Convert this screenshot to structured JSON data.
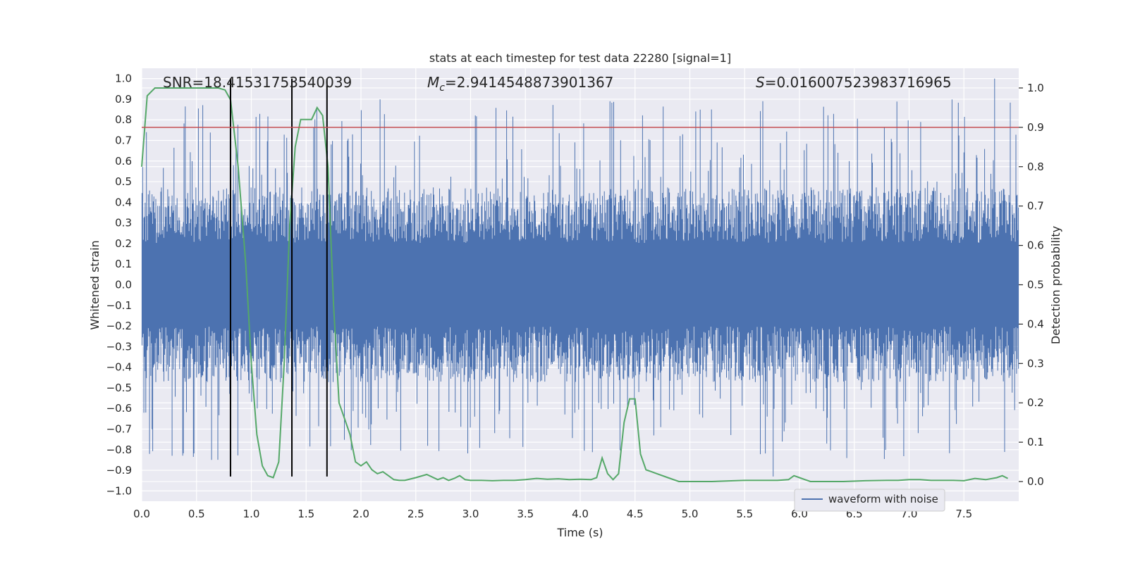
{
  "chart_data": {
    "type": "line",
    "title": "stats at each timestep for test data 22280 [signal=1]",
    "xlabel": "Time (s)",
    "ylabel": "Whitened strain",
    "ylabel_right": "Detection probability",
    "xlim": [
      0,
      8
    ],
    "ylim": [
      -1.05,
      1.05
    ],
    "ylim_right": [
      -0.05,
      1.05
    ],
    "x_ticks": [
      "0.0",
      "0.5",
      "1.0",
      "1.5",
      "2.0",
      "2.5",
      "3.0",
      "3.5",
      "4.0",
      "4.5",
      "5.0",
      "5.5",
      "6.0",
      "6.5",
      "7.0",
      "7.5"
    ],
    "y_ticks": [
      "1.0",
      "0.9",
      "0.8",
      "0.7",
      "0.6",
      "0.5",
      "0.4",
      "0.3",
      "0.2",
      "0.1",
      "0.0",
      "−0.1",
      "−0.2",
      "−0.3",
      "−0.4",
      "−0.5",
      "−0.6",
      "−0.7",
      "−0.8",
      "−0.9",
      "−1.0"
    ],
    "y_ticks_right": [
      "1.0",
      "0.9",
      "0.8",
      "0.7",
      "0.6",
      "0.5",
      "0.4",
      "0.3",
      "0.2",
      "0.1",
      "0.0"
    ],
    "annotations": {
      "snr": "SNR=18.41531753540039",
      "mc_symbol": "M",
      "mc_sub": "c",
      "mc_value": "=2.9414548873901367",
      "s_symbol": "S",
      "s_value": "=0.016007523983716965"
    },
    "legend": {
      "label": "waveform with noise",
      "position": "lower-right"
    },
    "threshold_right": 0.9,
    "vertical_lines_x": [
      0.81,
      1.37,
      1.69
    ],
    "grid": true,
    "series": [
      {
        "name": "waveform with noise",
        "color": "#4c72b0",
        "style": "dense-noise",
        "core_amplitude": 0.45,
        "peak_positive_max": 1.0,
        "peak_negative_min": -0.93
      },
      {
        "color": "#55a868",
        "x": [
          0.0,
          0.05,
          0.12,
          0.2,
          0.3,
          0.4,
          0.5,
          0.6,
          0.7,
          0.76,
          0.81,
          0.88,
          0.95,
          1.0,
          1.05,
          1.1,
          1.15,
          1.2,
          1.25,
          1.3,
          1.35,
          1.4,
          1.45,
          1.5,
          1.55,
          1.6,
          1.65,
          1.7,
          1.75,
          1.8,
          1.85,
          1.9,
          1.95,
          2.0,
          2.05,
          2.1,
          2.15,
          2.2,
          2.25,
          2.3,
          2.35,
          2.4,
          2.5,
          2.6,
          2.7,
          2.75,
          2.8,
          2.85,
          2.9,
          2.95,
          3.0,
          3.1,
          3.2,
          3.3,
          3.4,
          3.5,
          3.6,
          3.7,
          3.8,
          3.9,
          4.0,
          4.1,
          4.15,
          4.2,
          4.25,
          4.3,
          4.35,
          4.4,
          4.45,
          4.5,
          4.55,
          4.6,
          4.65,
          4.7,
          4.8,
          4.9,
          5.0,
          5.2,
          5.4,
          5.5,
          5.6,
          5.8,
          5.9,
          5.95,
          6.0,
          6.05,
          6.1,
          6.2,
          6.4,
          6.6,
          6.8,
          6.9,
          7.0,
          7.1,
          7.2,
          7.4,
          7.5,
          7.6,
          7.7,
          7.8,
          7.85,
          7.9
        ],
        "values": [
          0.8,
          0.98,
          1.0,
          1.0,
          1.0,
          1.0,
          1.0,
          1.0,
          1.0,
          0.995,
          0.97,
          0.8,
          0.55,
          0.3,
          0.12,
          0.04,
          0.015,
          0.01,
          0.05,
          0.3,
          0.65,
          0.85,
          0.92,
          0.92,
          0.92,
          0.95,
          0.93,
          0.8,
          0.45,
          0.2,
          0.16,
          0.12,
          0.05,
          0.04,
          0.05,
          0.03,
          0.02,
          0.025,
          0.015,
          0.005,
          0.003,
          0.003,
          0.01,
          0.018,
          0.005,
          0.01,
          0.003,
          0.008,
          0.015,
          0.005,
          0.003,
          0.003,
          0.002,
          0.003,
          0.003,
          0.005,
          0.008,
          0.006,
          0.007,
          0.005,
          0.006,
          0.005,
          0.01,
          0.06,
          0.02,
          0.005,
          0.02,
          0.15,
          0.21,
          0.21,
          0.07,
          0.03,
          0.025,
          0.02,
          0.01,
          0.0,
          0.0,
          0.0,
          0.002,
          0.003,
          0.003,
          0.003,
          0.005,
          0.015,
          0.01,
          0.005,
          0.0,
          0.0,
          0.0,
          0.002,
          0.003,
          0.003,
          0.005,
          0.005,
          0.003,
          0.003,
          0.002,
          0.008,
          0.005,
          0.01,
          0.015,
          0.008
        ]
      }
    ]
  }
}
